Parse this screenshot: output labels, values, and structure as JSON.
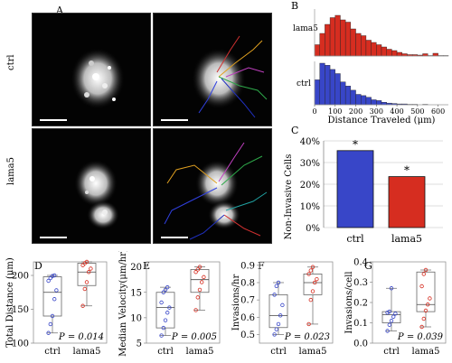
{
  "panels": {
    "A": "A",
    "B": "B",
    "C": "C",
    "D": "D",
    "E": "E",
    "F": "F",
    "G": "G"
  },
  "row_labels": {
    "ctrl": "ctrl",
    "lama5": "lama5"
  },
  "colors": {
    "ctrl": "#3846c8",
    "lama5": "#d62d20"
  },
  "chart_data": [
    {
      "panel": "B",
      "type": "bar",
      "xlabel": "Distance Traveled (μm)",
      "ylabel": "",
      "xticks": [
        "0",
        "100",
        "200",
        "300",
        "400",
        "500",
        "600"
      ],
      "xlim": [
        0,
        650
      ],
      "series": [
        {
          "name": "lama5",
          "color": "#d62d20",
          "bin_start": [
            0,
            25,
            50,
            75,
            100,
            125,
            150,
            175,
            200,
            225,
            250,
            275,
            300,
            325,
            350,
            375,
            400,
            425,
            450,
            475,
            500,
            525,
            550,
            575,
            600,
            625
          ],
          "values": [
            0.25,
            0.5,
            0.7,
            0.85,
            0.9,
            0.8,
            0.75,
            0.6,
            0.5,
            0.45,
            0.35,
            0.3,
            0.25,
            0.2,
            0.15,
            0.12,
            0.08,
            0.05,
            0.03,
            0.03,
            0.02,
            0.05,
            0.01,
            0.06,
            0.01,
            0.01
          ]
        },
        {
          "name": "ctrl",
          "color": "#3846c8",
          "bin_start": [
            0,
            25,
            50,
            75,
            100,
            125,
            150,
            175,
            200,
            225,
            250,
            275,
            300,
            325,
            350,
            375,
            400,
            425,
            450,
            475,
            500,
            525,
            550,
            575,
            600,
            625
          ],
          "values": [
            0.6,
            1.0,
            0.95,
            0.85,
            0.75,
            0.55,
            0.45,
            0.35,
            0.25,
            0.22,
            0.18,
            0.12,
            0.1,
            0.06,
            0.04,
            0.03,
            0.02,
            0.02,
            0.01,
            0.01,
            0.0,
            0.01,
            0.0,
            0.0,
            0.0,
            0.0
          ]
        }
      ]
    },
    {
      "panel": "C",
      "type": "bar",
      "ylabel": "Non-Invasive Cells",
      "categories": [
        "ctrl",
        "lama5"
      ],
      "values": [
        35.5,
        23.5
      ],
      "yticks": [
        "0%",
        "10%",
        "20%",
        "30%",
        "40%"
      ],
      "ylim": [
        0,
        40
      ],
      "annotations": [
        "*",
        "*"
      ]
    },
    {
      "panel": "D",
      "type": "box",
      "ylabel": "Total Distance (μm)",
      "categories": [
        "ctrl",
        "lama5"
      ],
      "yticks": [
        "100",
        "150",
        "200"
      ],
      "ylim": [
        100,
        220
      ],
      "pvalue": "P = 0.014",
      "boxes": [
        {
          "min": 115,
          "q1": 140,
          "median": 175,
          "q3": 198,
          "max": 200,
          "points": [
            115,
            128,
            140,
            165,
            178,
            192,
            196,
            199,
            200
          ]
        },
        {
          "min": 155,
          "q1": 185,
          "median": 205,
          "q3": 218,
          "max": 220,
          "points": [
            155,
            180,
            190,
            205,
            210,
            215,
            218,
            220
          ]
        }
      ]
    },
    {
      "panel": "E",
      "type": "box",
      "ylabel": "Median Velocity(μm/hr)",
      "categories": [
        "ctrl",
        "lama5"
      ],
      "yticks": [
        "5",
        "10",
        "15",
        "20"
      ],
      "ylim": [
        5,
        21
      ],
      "pvalue": "P = 0.005",
      "boxes": [
        {
          "min": 6.5,
          "q1": 8,
          "median": 12,
          "q3": 15,
          "max": 16,
          "points": [
            6.5,
            8,
            9.5,
            11,
            12,
            13,
            15,
            15.5,
            16
          ]
        },
        {
          "min": 11.5,
          "q1": 15,
          "median": 17.5,
          "q3": 19.5,
          "max": 20,
          "points": [
            11.5,
            14,
            15.5,
            17,
            18,
            19,
            19.5,
            20
          ]
        }
      ]
    },
    {
      "panel": "F",
      "type": "box",
      "ylabel": "Invasions/hr",
      "categories": [
        "ctrl",
        "lama5"
      ],
      "yticks": [
        "0.5",
        "0.6",
        "0.7",
        "0.8",
        "0.9"
      ],
      "ylim": [
        0.45,
        0.92
      ],
      "pvalue": "P = 0.023",
      "boxes": [
        {
          "min": 0.5,
          "q1": 0.54,
          "median": 0.61,
          "q3": 0.73,
          "max": 0.8,
          "points": [
            0.5,
            0.53,
            0.56,
            0.61,
            0.67,
            0.73,
            0.78,
            0.8
          ]
        },
        {
          "min": 0.56,
          "q1": 0.73,
          "median": 0.8,
          "q3": 0.85,
          "max": 0.89,
          "points": [
            0.56,
            0.7,
            0.75,
            0.8,
            0.82,
            0.85,
            0.87,
            0.89
          ]
        }
      ]
    },
    {
      "panel": "G",
      "type": "box",
      "ylabel": "Invasions/cell",
      "categories": [
        "ctrl",
        "lama5"
      ],
      "yticks": [
        "0.0",
        "0.1",
        "0.2",
        "0.3",
        "0.4"
      ],
      "ylim": [
        0,
        0.4
      ],
      "pvalue": "P = 0.039",
      "boxes": [
        {
          "min": 0.06,
          "q1": 0.1,
          "median": 0.14,
          "q3": 0.155,
          "max": 0.27,
          "points": [
            0.06,
            0.09,
            0.11,
            0.13,
            0.145,
            0.15,
            0.155,
            0.27
          ]
        },
        {
          "min": 0.08,
          "q1": 0.155,
          "median": 0.19,
          "q3": 0.35,
          "max": 0.36,
          "points": [
            0.08,
            0.12,
            0.16,
            0.19,
            0.22,
            0.28,
            0.34,
            0.36
          ]
        }
      ]
    }
  ]
}
